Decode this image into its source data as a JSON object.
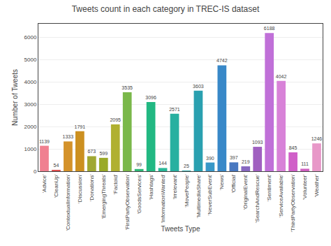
{
  "chart_data": {
    "type": "bar",
    "title": "Tweets count in each category in TREC-IS dataset",
    "xlabel": "Tweets Type",
    "ylabel": "Number of Tweets",
    "categories": [
      "'Advice'",
      "'CleanUp'",
      "'ContextualInformation'",
      "'Discussion'",
      "'Donations'",
      "'EmergingThreats'",
      "'Factoid'",
      "'FirstPartyObservation'",
      "'GoodsServices'",
      "'Hashtags'",
      "'InformationWanted'",
      "'Irrelevant'",
      "'MovePeople'",
      "'MultimediaShare'",
      "'NeverSubEvent'",
      "'News'",
      "'Official'",
      "'OriginalEvent'",
      "'SearchAndRescue'",
      "'Sentiment'",
      "'ServiceAvailable'",
      "'ThirdPartyObservation'",
      "'Volunteer'",
      "'Weather'"
    ],
    "values": [
      1139,
      54,
      1333,
      1791,
      673,
      599,
      2095,
      3535,
      99,
      3096,
      144,
      2571,
      25,
      3603,
      390,
      4742,
      397,
      219,
      1093,
      6188,
      4042,
      845,
      111,
      1246
    ],
    "colors": [
      "#f08090",
      "#e05050",
      "#d4922a",
      "#cc9020",
      "#a0a832",
      "#9aaa28",
      "#b0b030",
      "#7ab84a",
      "#30b878",
      "#22b882",
      "#28b898",
      "#28b0a0",
      "#28a8a8",
      "#2aa0b0",
      "#3898c8",
      "#3888c8",
      "#4878c0",
      "#8868c0",
      "#a060c0",
      "#c070d8",
      "#d882d8",
      "#d060c8",
      "#d060c0",
      "#e898c8"
    ],
    "ylim": [
      0,
      6600
    ],
    "yticks": [
      0,
      1000,
      2000,
      3000,
      4000,
      5000,
      6000
    ],
    "grid": true,
    "data_labels": true
  }
}
